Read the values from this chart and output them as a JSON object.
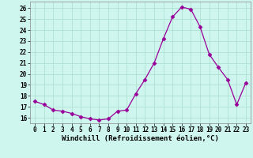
{
  "x": [
    0,
    1,
    2,
    3,
    4,
    5,
    6,
    7,
    8,
    9,
    10,
    11,
    12,
    13,
    14,
    15,
    16,
    17,
    18,
    19,
    20,
    21,
    22,
    23
  ],
  "y": [
    17.5,
    17.2,
    16.7,
    16.6,
    16.4,
    16.1,
    15.9,
    15.8,
    15.9,
    16.6,
    16.7,
    18.2,
    19.5,
    21.0,
    23.2,
    25.2,
    26.1,
    25.9,
    24.3,
    21.8,
    20.6,
    19.5,
    17.2,
    19.2
  ],
  "line_color": "#990099",
  "marker": "D",
  "marker_size": 2.5,
  "bg_color": "#cef5ee",
  "grid_color": "#aaddcc",
  "xlabel": "Windchill (Refroidissement éolien,°C)",
  "ylim": [
    15.5,
    26.6
  ],
  "xlim": [
    -0.5,
    23.5
  ],
  "yticks": [
    16,
    17,
    18,
    19,
    20,
    21,
    22,
    23,
    24,
    25,
    26
  ],
  "xticks": [
    0,
    1,
    2,
    3,
    4,
    5,
    6,
    7,
    8,
    9,
    10,
    11,
    12,
    13,
    14,
    15,
    16,
    17,
    18,
    19,
    20,
    21,
    22,
    23
  ],
  "tick_fontsize": 5.5,
  "xlabel_fontsize": 6.5
}
